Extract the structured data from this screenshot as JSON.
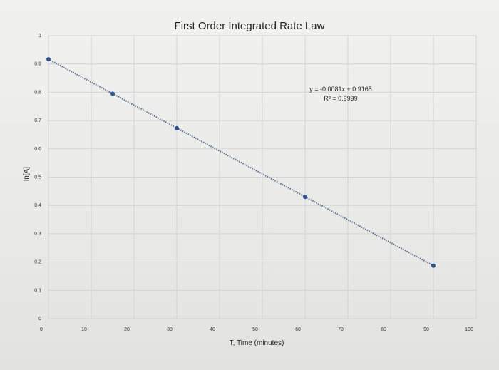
{
  "chart_data": {
    "type": "scatter",
    "title": "First Order Integrated Rate Law",
    "xlabel": "T, Time (minutes)",
    "ylabel": "ln[A]",
    "xlim": [
      0,
      100
    ],
    "ylim": [
      0,
      1
    ],
    "x_ticks": [
      "0",
      "10",
      "20",
      "30",
      "40",
      "50",
      "60",
      "70",
      "80",
      "90",
      "100"
    ],
    "y_ticks": [
      "0",
      "0.1",
      "0.2",
      "0.3",
      "0.4",
      "0.5",
      "0.6",
      "0.7",
      "0.8",
      "0.9",
      "1"
    ],
    "grid": true,
    "series": [
      {
        "x": [
          0,
          15,
          30,
          60,
          90
        ],
        "y": [
          0.9165,
          0.795,
          0.673,
          0.43,
          0.187
        ],
        "color": "#2f5597"
      }
    ],
    "trendline": {
      "type": "linear",
      "slope": -0.0081,
      "intercept": 0.9165,
      "style": "dotted",
      "equation": "y = -0.0081x + 0.9165",
      "r_squared": "R² = 0.9999"
    }
  }
}
